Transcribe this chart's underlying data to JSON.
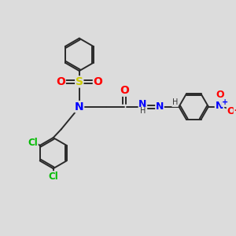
{
  "bg_color": "#dcdcdc",
  "atom_colors": {
    "S": "#cccc00",
    "O": "#ff0000",
    "N": "#0000ff",
    "Cl": "#00bb00",
    "C": "#1a1a1a",
    "H": "#333333"
  },
  "bond_color": "#2a2a2a",
  "bond_width": 1.4,
  "figsize": [
    3.0,
    3.0
  ],
  "dpi": 100
}
